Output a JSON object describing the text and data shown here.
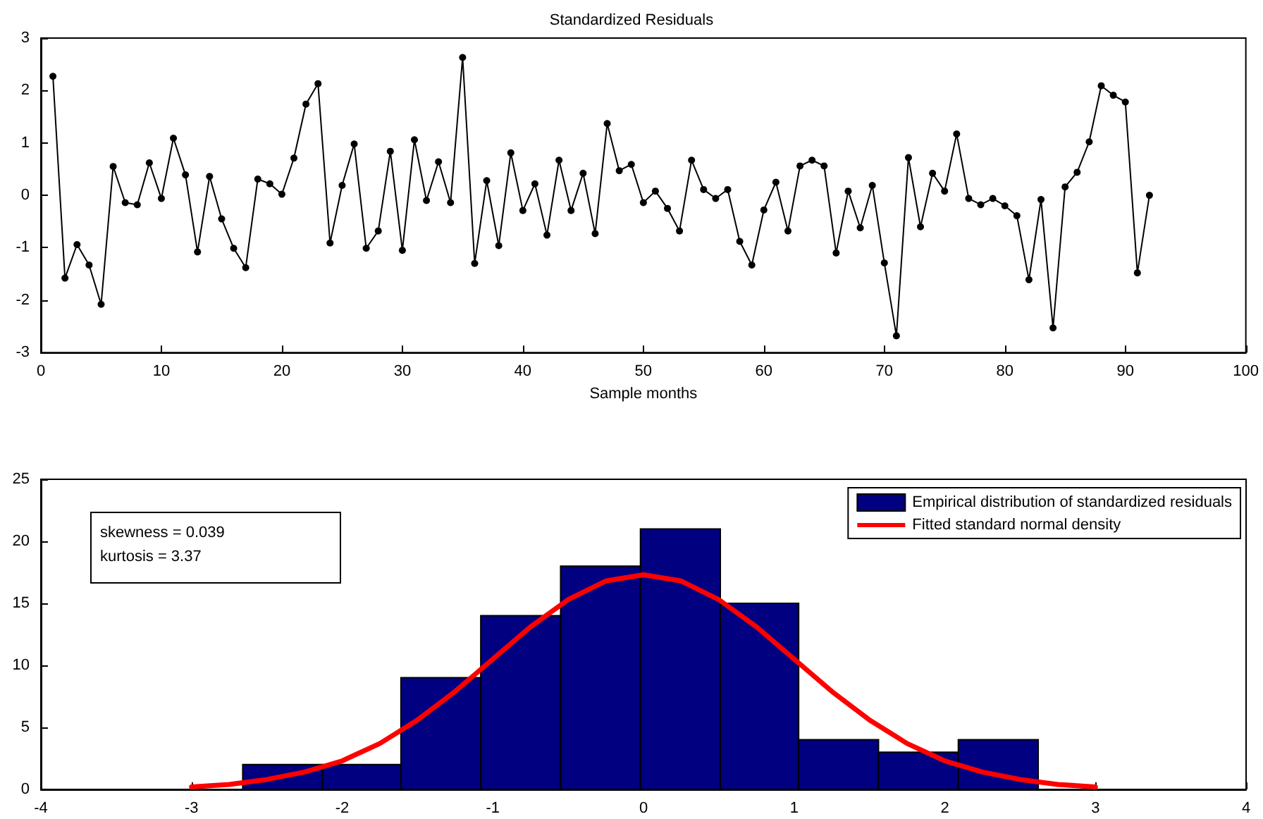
{
  "chart_data": [
    {
      "type": "line",
      "title": "Standardized Residuals",
      "xlabel": "Sample months",
      "marker": "circle",
      "line_style": "solid",
      "grid": false,
      "legend": false,
      "xlim": [
        0,
        100
      ],
      "xticks": [
        0,
        10,
        20,
        30,
        40,
        50,
        60,
        70,
        80,
        90,
        100
      ],
      "ylim": [
        -3,
        3
      ],
      "yticks": [
        -3,
        -2,
        -1,
        0,
        1,
        2,
        3
      ],
      "x": [
        1,
        2,
        3,
        4,
        5,
        6,
        7,
        8,
        9,
        10,
        11,
        12,
        13,
        14,
        15,
        16,
        17,
        18,
        19,
        20,
        21,
        22,
        23,
        24,
        25,
        26,
        27,
        28,
        29,
        30,
        31,
        32,
        33,
        34,
        35,
        36,
        37,
        38,
        39,
        40,
        41,
        42,
        43,
        44,
        45,
        46,
        47,
        48,
        49,
        50,
        51,
        52,
        53,
        54,
        55,
        56,
        57,
        58,
        59,
        60,
        61,
        62,
        63,
        64,
        65,
        66,
        67,
        68,
        69,
        70,
        71,
        72,
        73,
        74,
        75,
        76,
        77,
        78,
        79,
        80,
        81,
        82,
        83,
        84,
        85,
        86,
        87,
        88,
        89,
        90,
        91,
        92
      ],
      "series": [
        {
          "color": "#000000",
          "values": [
            2.27,
            -1.58,
            -0.94,
            -1.33,
            -2.08,
            0.55,
            -0.14,
            -0.18,
            0.62,
            -0.06,
            1.09,
            0.39,
            -1.08,
            0.36,
            -0.45,
            -1.01,
            -1.38,
            0.31,
            0.22,
            0.02,
            0.71,
            1.74,
            2.13,
            -0.91,
            0.19,
            0.98,
            -1.01,
            -0.68,
            0.84,
            -1.05,
            1.06,
            -0.1,
            0.64,
            -0.14,
            2.63,
            -1.3,
            0.28,
            -0.96,
            0.81,
            -0.29,
            0.22,
            -0.76,
            0.67,
            -0.29,
            0.42,
            -0.73,
            1.37,
            0.47,
            0.59,
            -0.14,
            0.08,
            -0.25,
            -0.68,
            0.67,
            0.11,
            -0.06,
            0.11,
            -0.88,
            -1.33,
            -0.28,
            0.25,
            -0.68,
            0.56,
            0.67,
            0.56,
            -1.1,
            0.08,
            -0.62,
            0.19,
            -1.29,
            -2.68,
            0.72,
            -0.6,
            0.42,
            0.08,
            1.17,
            -0.06,
            -0.18,
            -0.06,
            -0.2,
            -0.39,
            -1.61,
            -0.08,
            -2.53,
            0.16,
            0.44,
            1.02,
            2.09,
            1.91,
            1.78,
            -1.48,
            0.0
          ]
        }
      ]
    },
    {
      "type": "histogram",
      "grid": false,
      "legend": "top right",
      "annotations": [
        "skewness = 0.039",
        "kurtosis = 3.37"
      ],
      "xlim": [
        -4,
        4
      ],
      "xticks": [
        -4,
        -3,
        -2,
        -1,
        0,
        1,
        2,
        3,
        4
      ],
      "ylim": [
        0,
        25
      ],
      "yticks": [
        0,
        5,
        10,
        15,
        20,
        25
      ],
      "bins": [
        -2.66,
        -2.13,
        -1.61,
        -1.08,
        -0.55,
        -0.02,
        0.51,
        1.03,
        1.56,
        2.09,
        2.62
      ],
      "series": [
        {
          "name": "Empirical distribution of standardized residuals",
          "color": "#000080",
          "values": [
            2,
            2,
            9,
            14,
            18,
            21,
            15,
            4,
            3,
            4
          ]
        },
        {
          "type": "line",
          "name": "Fitted standard normal density",
          "color": "#ff0000",
          "marker": "none",
          "line_style": "solid",
          "x": [
            -3,
            -2.75,
            -2.5,
            -2.25,
            -2,
            -1.75,
            -1.5,
            -1.25,
            -1,
            -0.75,
            -0.5,
            -0.25,
            0,
            0.25,
            0.5,
            0.75,
            1,
            1.25,
            1.5,
            1.75,
            2,
            2.25,
            2.5,
            2.75,
            3
          ],
          "values": [
            0.2,
            0.4,
            0.8,
            1.4,
            2.3,
            3.7,
            5.6,
            7.9,
            10.5,
            13.1,
            15.3,
            16.8,
            17.3,
            16.8,
            15.3,
            13.1,
            10.5,
            7.9,
            5.6,
            3.7,
            2.3,
            1.4,
            0.8,
            0.4,
            0.2
          ]
        }
      ]
    }
  ]
}
